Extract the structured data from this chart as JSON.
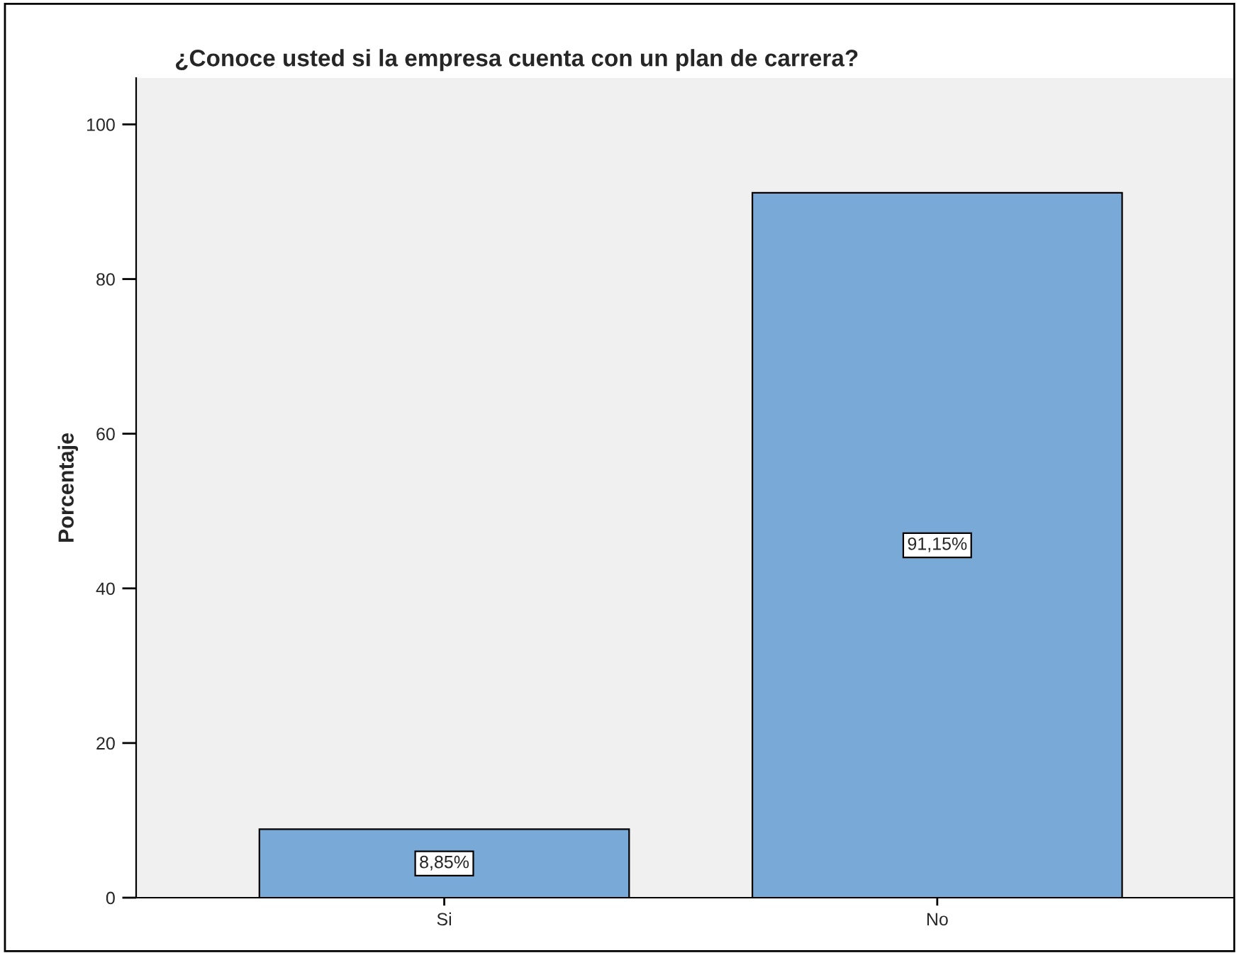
{
  "chart_data": {
    "type": "bar",
    "title": "¿Conoce usted si la empresa cuenta con un plan de carrera?",
    "ylabel": "Porcentaje",
    "categories": [
      "Si",
      "No"
    ],
    "values": [
      8.85,
      91.15
    ],
    "value_labels": [
      "8,85%",
      "91,15%"
    ],
    "color": "#79a9d6",
    "ylim": [
      0,
      106
    ],
    "yticks": [
      0,
      20,
      40,
      60,
      80,
      100
    ],
    "grid": false
  }
}
